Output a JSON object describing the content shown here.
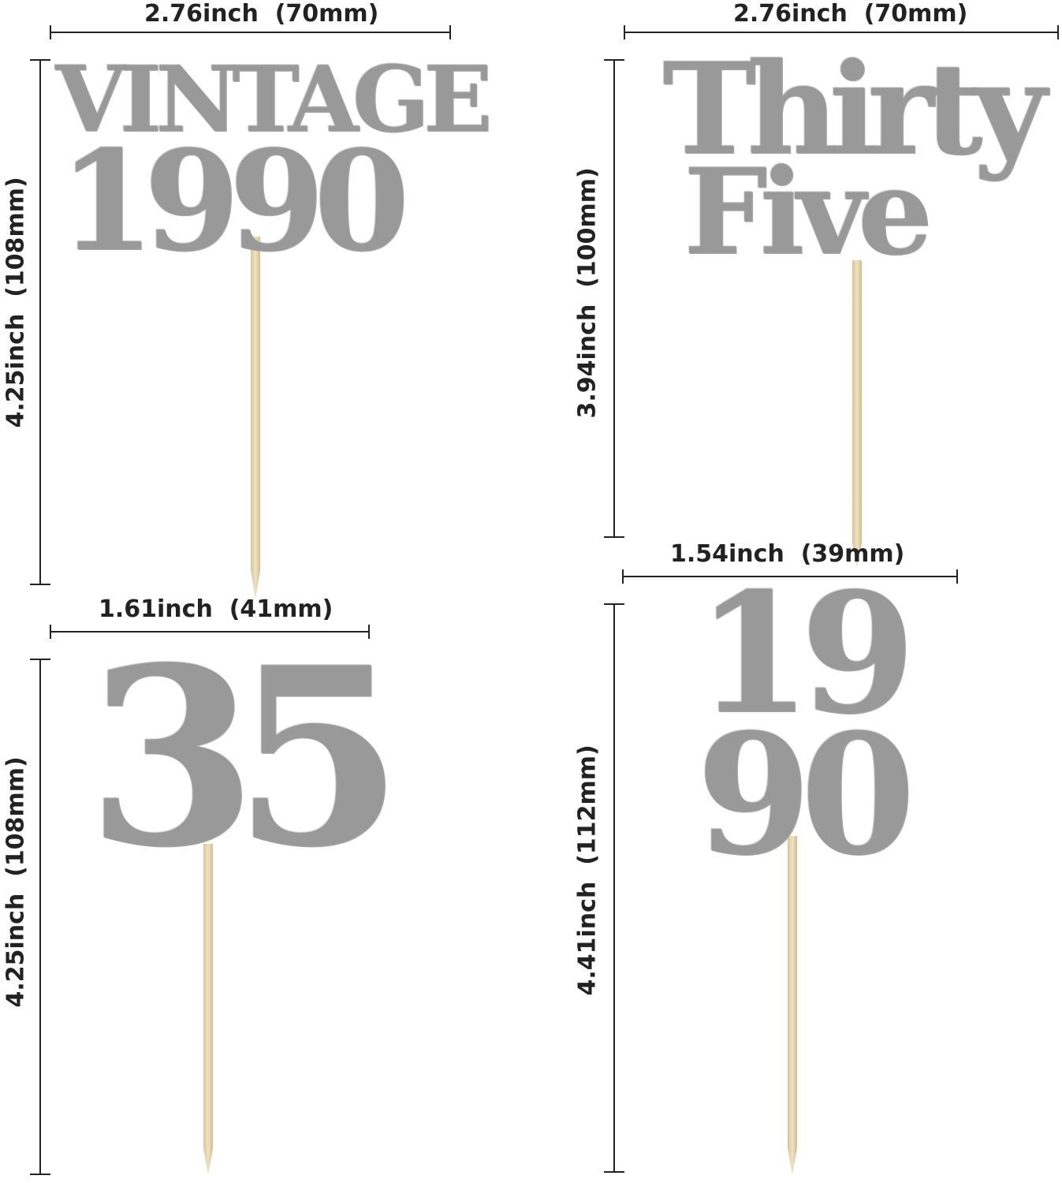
{
  "dimensions": {
    "tl_width": "2.76inch  (70mm)",
    "tl_height": "4.25inch  (108mm)",
    "tr_width": "2.76inch  (70mm)",
    "tr_height": "3.94inch  (100mm)",
    "bl_width": "1.61inch  (41mm)",
    "bl_height": "4.25inch  (108mm)",
    "br_width": "1.54inch  (39mm)",
    "br_height": "4.41inch  (112mm)"
  },
  "toppers": {
    "vintage_line1": "VINTAGE",
    "vintage_line2": "1990",
    "thirty_line1": "Thirty",
    "thirty_line2": "Five",
    "number_35": "35",
    "year_line1": "19",
    "year_line2": "90"
  },
  "colors": {
    "glitter": "#c9c9c9",
    "stick": "#e3d3ad",
    "lines": "#222222"
  }
}
